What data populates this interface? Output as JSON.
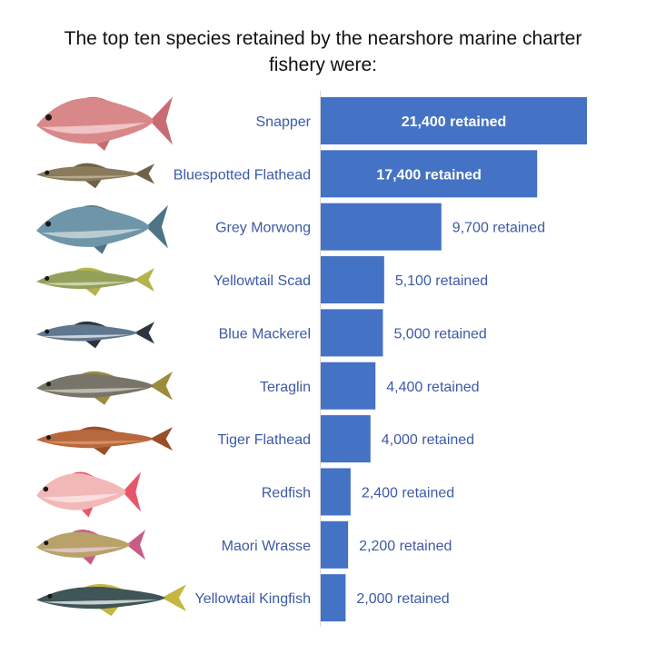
{
  "title": {
    "line1": "The top ten species retained by the nearshore marine charter",
    "line2": "fishery were:"
  },
  "colors": {
    "bar": "#4472c4",
    "label_outside": "#3d5aa6",
    "label_inside": "#ffffff"
  },
  "value_suffix": " retained",
  "chart_data": {
    "type": "bar",
    "orientation": "horizontal",
    "title": "The top ten species retained by the nearshore marine charter fishery were:",
    "categories": [
      "Snapper",
      "Bluespotted Flathead",
      "Grey Morwong",
      "Yellowtail Scad",
      "Blue Mackerel",
      "Teraglin",
      "Tiger Flathead",
      "Redfish",
      "Maori Wrasse",
      "Yellowtail Kingfish"
    ],
    "values": [
      21400,
      17400,
      9700,
      5100,
      5000,
      4400,
      4000,
      2400,
      2200,
      2000
    ],
    "labels": [
      "21,400 retained",
      "17,400 retained",
      "9,700 retained",
      "5,100 retained",
      "5,000 retained",
      "4,400 retained",
      "4,000 retained",
      "2,400 retained",
      "2,200 retained",
      "2,000 retained"
    ],
    "xlabel": "",
    "ylabel": "",
    "xlim": [
      0,
      21400
    ],
    "grid": false,
    "legend": "none"
  },
  "fish_icons": [
    "snapper-icon",
    "bluespotted-flathead-icon",
    "grey-morwong-icon",
    "yellowtail-scad-icon",
    "blue-mackerel-icon",
    "teraglin-icon",
    "tiger-flathead-icon",
    "redfish-icon",
    "maori-wrasse-icon",
    "yellowtail-kingfish-icon"
  ]
}
